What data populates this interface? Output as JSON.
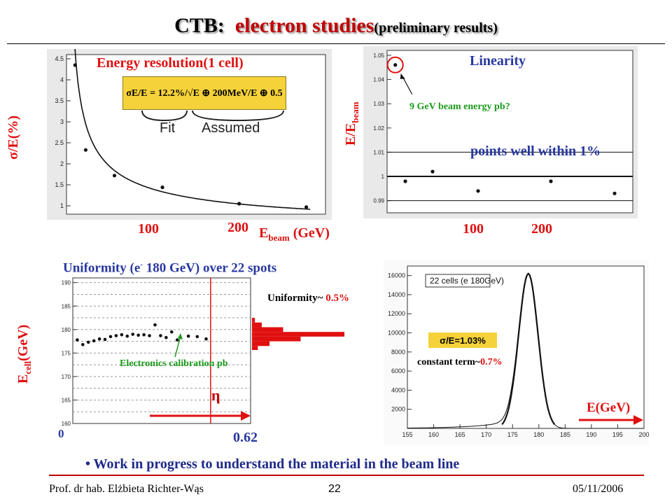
{
  "slide": {
    "title_prefix": "CTB:",
    "title_main": "electron studies",
    "title_sub": "(preliminary results)",
    "bullet": "• Work in progress to understand the material in the beam line",
    "footer_left": "Prof. dr hab. Elżbieta Richter-Wąs",
    "footer_center": "22",
    "footer_right": "05/11/2006"
  },
  "annotations": {
    "energy_res_title": "Energy resolution(1 cell)",
    "energy_res_formula": "σE/E = 12.2%/√E ⊕ 200MeV/E ⊕ 0.5",
    "formula_fit": "Fit",
    "formula_assumed": "Assumed",
    "sigma_axis": "σ/E(%)",
    "energy_tick_100": "100",
    "energy_tick_200": "200",
    "ebeam_label_main": "E",
    "ebeam_label_sub": "beam",
    "ebeam_label_unit": " (GeV)",
    "linearity_title": "Linearity",
    "linearity_yaxis_main": "E/E",
    "linearity_yaxis_sub": "beam",
    "linearity_note": "9 GeV beam energy pb?",
    "linearity_points_note": "points well within 1%",
    "lin_tick_100": "100",
    "lin_tick_200": "200",
    "uniformity_title_a": "Uniformity (e",
    "uniformity_title_sup": "-",
    "uniformity_title_b": " 180 GeV) over 22 spots",
    "ecell_axis_main": "E",
    "ecell_axis_sub": "cell",
    "ecell_axis_unit": "(GeV)",
    "uniformity_value_label": "Uniformity~ ",
    "uniformity_value": "0.5%",
    "electronics_note": "Electronics calibration pb",
    "eta_symbol": "η",
    "eta_zero": "0",
    "eta_max": "0.62",
    "hist_legend": "22 cells (e 180GeV)",
    "hist_resolution": "σ/E=1.03%",
    "constant_term_label": "constant term~",
    "constant_term_value": "0.7%",
    "hist_xaxis": "E(GeV)"
  },
  "colors": {
    "accent_red": "#c00000",
    "label_red": "#e01010",
    "note_green": "#1a9a1a",
    "formula_bg": "#f5d23a",
    "arrow_blue": "#2838a0"
  },
  "chart_data": [
    {
      "type": "scatter",
      "id": "energy_resolution",
      "title": "Energy resolution(1 cell)",
      "ylabel": "σ/E(%)",
      "xlabel": "Ebeam (GeV)",
      "ylim": [
        0.8,
        4.6
      ],
      "xlim": [
        0,
        270
      ],
      "yticks": [
        1,
        1.5,
        2,
        2.5,
        3,
        3.5,
        4,
        4.5
      ],
      "ytick_labels": [
        "1",
        "1.5",
        "2",
        "2.5",
        "3",
        "3.5",
        "4",
        "4.5"
      ],
      "xticks": [
        100,
        200
      ],
      "series": [
        {
          "x": [
            9,
            20,
            50,
            100,
            180,
            250
          ],
          "y": [
            4.35,
            2.33,
            1.72,
            1.44,
            1.05,
            0.97
          ]
        }
      ],
      "fit_curve": {
        "a": 12.2,
        "b": 0.2,
        "c": 0.5
      }
    },
    {
      "type": "scatter",
      "id": "linearity",
      "title": "Linearity",
      "ylabel": "E/Ebeam",
      "xlabel": "Ebeam (GeV)",
      "ylim": [
        0.985,
        1.052
      ],
      "xlim": [
        0,
        270
      ],
      "yticks": [
        0.99,
        1,
        1.01,
        1.02,
        1.03,
        1.04,
        1.05
      ],
      "ytick_labels": [
        "0.99",
        "1",
        "1.01",
        "1.02",
        "1.03",
        "1.04",
        "1.05"
      ],
      "xticks": [
        100,
        200
      ],
      "reference_lines": [
        1.01,
        1.0,
        0.99
      ],
      "series": [
        {
          "x": [
            9,
            20,
            50,
            100,
            180,
            250
          ],
          "y": [
            1.046,
            0.998,
            1.002,
            0.994,
            0.998,
            0.993
          ]
        }
      ]
    },
    {
      "type": "scatter",
      "id": "uniformity",
      "title": "Uniformity (e- 180 GeV) over 22 spots",
      "ylabel": "Ecell(GeV)",
      "xlabel": "η",
      "ylim": [
        160,
        191
      ],
      "xlim": [
        0,
        0.8
      ],
      "yticks": [
        160,
        165,
        170,
        175,
        180,
        185,
        190
      ],
      "ytick_labels": [
        "160",
        "165",
        "170",
        "175",
        "180",
        "185",
        "190"
      ],
      "divider_x": 0.62,
      "series": [
        {
          "x": [
            0.02,
            0.045,
            0.07,
            0.095,
            0.12,
            0.145,
            0.17,
            0.195,
            0.22,
            0.245,
            0.27,
            0.295,
            0.32,
            0.345,
            0.37,
            0.395,
            0.42,
            0.445,
            0.47,
            0.52,
            0.56,
            0.6
          ],
          "y": [
            177.8,
            176.8,
            177.3,
            177.6,
            178.0,
            177.9,
            178.5,
            178.7,
            178.9,
            178.6,
            179.0,
            178.8,
            178.9,
            178.7,
            181.0,
            178.7,
            178.3,
            179.5,
            177.8,
            178.6,
            178.5,
            178.0
          ]
        }
      ],
      "projection": {
        "y": [
          182,
          181,
          180,
          179,
          178,
          177,
          176
        ],
        "count": [
          0.3,
          1.0,
          3.2,
          9.5,
          5.0,
          1.8,
          0.6
        ]
      }
    },
    {
      "type": "area",
      "id": "energy_histogram",
      "xlabel": "E(GeV)",
      "xlim": [
        155,
        200
      ],
      "ylim": [
        0,
        17000
      ],
      "xticks": [
        155,
        160,
        165,
        170,
        175,
        180,
        185,
        190,
        195,
        200
      ],
      "yticks": [
        0,
        2000,
        4000,
        6000,
        8000,
        10000,
        12000,
        14000,
        16000
      ],
      "ytick_labels": [
        "",
        "2000",
        "4000",
        "6000",
        "8000",
        "10000",
        "12000",
        "14000",
        "16000"
      ],
      "legend": "22 cells (e 180GeV)",
      "peak": {
        "mean": 178.0,
        "amplitude": 16200,
        "sigma": 1.85,
        "tail_amplitude": 1200,
        "tail_scale": 6.5
      }
    }
  ]
}
